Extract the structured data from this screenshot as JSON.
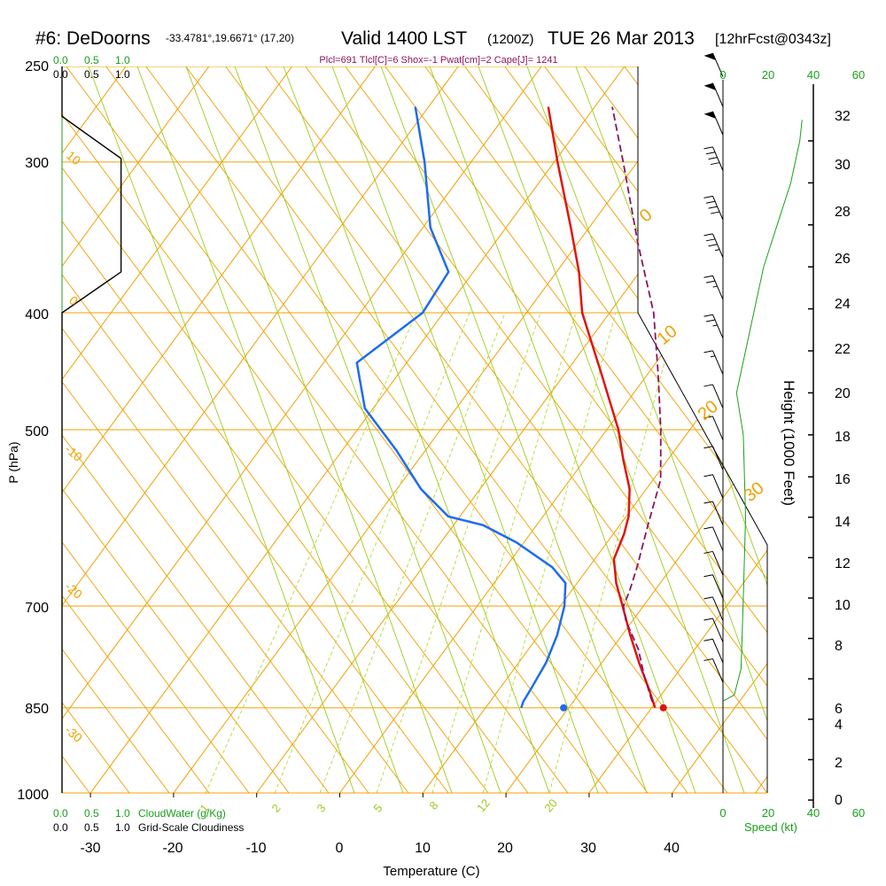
{
  "header": {
    "station_title": "#6: DeDoorns",
    "coords": "-33.4781°,19.6671° (17,20)",
    "valid_main": "Valid 1400 LST",
    "valid_utc": "(1200Z)",
    "date": "TUE 26 Mar 2013",
    "forecast": "[12hrFcst@0343z]",
    "params": "Plcl=691 Tlcl[C]=6 Shox=-1 Pwat[cm]=2 Cape[J]= 1241"
  },
  "colors": {
    "temperature": "#e0140e",
    "dewpoint": "#1e6cf0",
    "parcel": "#8b1460",
    "isotherm_isobar": "#f0a000",
    "dry_adiabat": "#9ccc1c",
    "moist_adiabat": "#b8d830",
    "green": "#18a018",
    "black": "#000000"
  },
  "chart_data": {
    "type": "skew-t",
    "xlabel": "Temperature (C)",
    "ylabel": "P (hPa)",
    "y2label": "Height (1000 Feet)",
    "x_ticks": [
      "-30",
      "-20",
      "-10",
      "0",
      "10",
      "20",
      "30",
      "40"
    ],
    "x_tick_values": [
      -30,
      -20,
      -10,
      0,
      10,
      20,
      30,
      40
    ],
    "pressure_ticks": [
      "250",
      "300",
      "400",
      "500",
      "700",
      "850",
      "1000"
    ],
    "pressure_tick_values": [
      250,
      300,
      400,
      500,
      700,
      850,
      1000
    ],
    "height_ticks": [
      "0",
      "2",
      "4",
      "6",
      "8",
      "10",
      "12",
      "14",
      "16",
      "18",
      "20",
      "22",
      "24",
      "26",
      "28",
      "30",
      "32"
    ],
    "height_tick_values": [
      0,
      2,
      4,
      6,
      8,
      10,
      12,
      14,
      16,
      18,
      20,
      22,
      24,
      26,
      28,
      30,
      32
    ],
    "skewed_isotherm_labels": [
      "-10",
      "0",
      "10",
      "20",
      "30"
    ],
    "left_isotherm_labels": [
      "10",
      "0",
      "-10",
      "-20",
      "-30"
    ],
    "mixing_ratio_labels": [
      "1",
      "2",
      "3",
      "5",
      "8",
      "12",
      "20"
    ],
    "cloud_scale_top": [
      "0.0",
      "0.5",
      "1.0"
    ],
    "cloud_scale_top_black": [
      "0.0",
      "0.5",
      "1.0"
    ],
    "cloud_scale_bottom": [
      "0.0",
      "0.5",
      "1.0"
    ],
    "cloudwater_label": "CloudWater (g/Kg)",
    "cloudiness_label": "Grid-Scale Cloudiness",
    "speed_ticks_top": [
      "0",
      "20",
      "40",
      "60"
    ],
    "speed_ticks_bottom": [
      "0",
      "20",
      "40",
      "60"
    ],
    "speed_label": "Speed (kt)",
    "temperature_profile": [
      {
        "p": 850,
        "t": 30.4
      },
      {
        "p": 820,
        "t": 28.0
      },
      {
        "p": 780,
        "t": 24.5
      },
      {
        "p": 740,
        "t": 21.0
      },
      {
        "p": 700,
        "t": 17.5
      },
      {
        "p": 670,
        "t": 14.7
      },
      {
        "p": 640,
        "t": 12.3
      },
      {
        "p": 610,
        "t": 11.3
      },
      {
        "p": 590,
        "t": 10.3
      },
      {
        "p": 560,
        "t": 8.0
      },
      {
        "p": 530,
        "t": 4.7
      },
      {
        "p": 500,
        "t": 1.4
      },
      {
        "p": 450,
        "t": -5.5
      },
      {
        "p": 400,
        "t": -13.3
      },
      {
        "p": 370,
        "t": -17.3
      },
      {
        "p": 340,
        "t": -22.2
      },
      {
        "p": 300,
        "t": -29.6
      },
      {
        "p": 270,
        "t": -35.6
      }
    ],
    "dewpoint_profile": [
      {
        "p": 850,
        "td": 14.3
      },
      {
        "p": 840,
        "td": 14.0
      },
      {
        "p": 820,
        "td": 13.8
      },
      {
        "p": 780,
        "td": 13.3
      },
      {
        "p": 740,
        "td": 12.2
      },
      {
        "p": 700,
        "td": 10.5
      },
      {
        "p": 670,
        "td": 8.6
      },
      {
        "p": 650,
        "td": 5.6
      },
      {
        "p": 620,
        "td": -0.9
      },
      {
        "p": 600,
        "td": -6.4
      },
      {
        "p": 590,
        "td": -11.4
      },
      {
        "p": 560,
        "td": -17.1
      },
      {
        "p": 520,
        "td": -23.5
      },
      {
        "p": 480,
        "td": -31.0
      },
      {
        "p": 440,
        "td": -36.0
      },
      {
        "p": 400,
        "td": -32.5
      },
      {
        "p": 370,
        "td": -33.0
      },
      {
        "p": 340,
        "td": -39.1
      },
      {
        "p": 300,
        "td": -45.6
      },
      {
        "p": 270,
        "td": -51.6
      }
    ],
    "parcel_profile": [
      {
        "p": 840,
        "t": 29.5
      },
      {
        "p": 800,
        "t": 26.3
      },
      {
        "p": 760,
        "t": 23.2
      },
      {
        "p": 720,
        "t": 19.2
      },
      {
        "p": 700,
        "t": 17.6
      },
      {
        "p": 680,
        "t": 17.0
      },
      {
        "p": 650,
        "t": 15.8
      },
      {
        "p": 600,
        "t": 13.4
      },
      {
        "p": 550,
        "t": 10.9
      },
      {
        "p": 500,
        "t": 6.5
      },
      {
        "p": 450,
        "t": 1.3
      },
      {
        "p": 400,
        "t": -4.7
      },
      {
        "p": 350,
        "t": -12.8
      },
      {
        "p": 300,
        "t": -21.7
      },
      {
        "p": 270,
        "t": -27.9
      }
    ],
    "surface_temperature": {
      "p": 850,
      "t": 31.4
    },
    "surface_dewpoint": {
      "p": 850,
      "td": 19.4
    },
    "cloudiness_profile": [
      {
        "p": 250,
        "v": 0.0
      },
      {
        "p": 275,
        "v": 0.0
      },
      {
        "p": 298,
        "v": 0.98
      },
      {
        "p": 370,
        "v": 0.98
      },
      {
        "p": 400,
        "v": 0.0
      },
      {
        "p": 1000,
        "v": 0.0
      }
    ],
    "wind_speed_profile": [
      {
        "h": 4.9,
        "s": 0
      },
      {
        "h": 5.2,
        "s": 5
      },
      {
        "h": 6.5,
        "s": 8
      },
      {
        "h": 10,
        "s": 9
      },
      {
        "h": 14,
        "s": 10
      },
      {
        "h": 18,
        "s": 9
      },
      {
        "h": 20,
        "s": 6
      },
      {
        "h": 22,
        "s": 10
      },
      {
        "h": 24,
        "s": 14
      },
      {
        "h": 26,
        "s": 18
      },
      {
        "h": 28,
        "s": 24
      },
      {
        "h": 30,
        "s": 30
      },
      {
        "h": 32,
        "s": 34
      },
      {
        "h": 33,
        "s": 35
      }
    ],
    "wind_barbs": [
      {
        "p": 255,
        "kt": 50
      },
      {
        "p": 270,
        "kt": 50
      },
      {
        "p": 285,
        "kt": 50
      },
      {
        "p": 305,
        "kt": 40
      },
      {
        "p": 335,
        "kt": 40
      },
      {
        "p": 360,
        "kt": 35
      },
      {
        "p": 390,
        "kt": 25
      },
      {
        "p": 420,
        "kt": 25
      },
      {
        "p": 450,
        "kt": 15
      },
      {
        "p": 480,
        "kt": 10
      },
      {
        "p": 510,
        "kt": 10
      },
      {
        "p": 540,
        "kt": 10
      },
      {
        "p": 570,
        "kt": 10
      },
      {
        "p": 600,
        "kt": 10
      },
      {
        "p": 630,
        "kt": 10
      },
      {
        "p": 660,
        "kt": 10
      },
      {
        "p": 690,
        "kt": 10
      },
      {
        "p": 720,
        "kt": 10
      },
      {
        "p": 750,
        "kt": 10
      },
      {
        "p": 780,
        "kt": 10
      },
      {
        "p": 810,
        "kt": 10
      }
    ]
  }
}
